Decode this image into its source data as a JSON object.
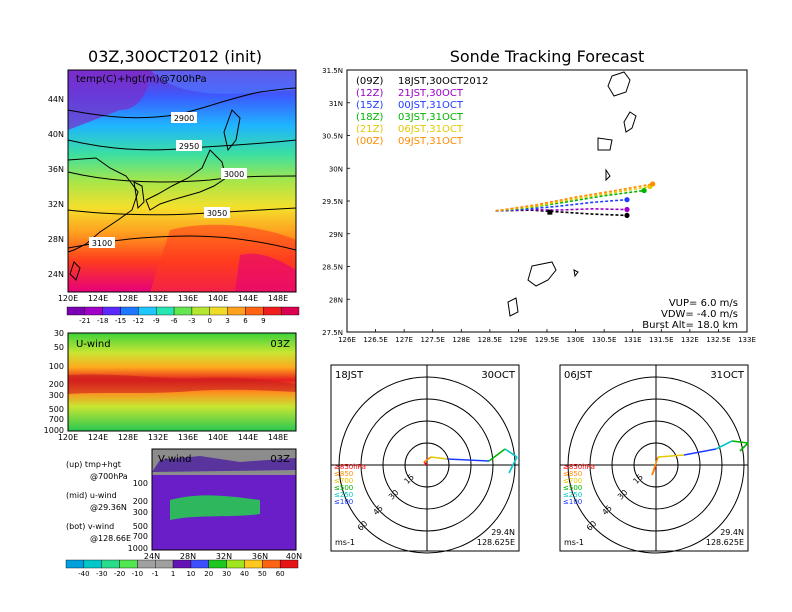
{
  "left": {
    "title": "03Z,30OCT2012 (init)",
    "map_label": "temp(C)+hgt(m)@700hPa",
    "lat_ticks": [
      "44N",
      "40N",
      "36N",
      "32N",
      "28N",
      "24N"
    ],
    "lon_ticks": [
      "120E",
      "124E",
      "128E",
      "132E",
      "136E",
      "140E",
      "144E",
      "148E"
    ],
    "contours": [
      "2900",
      "2950",
      "3000",
      "3050",
      "3100"
    ],
    "temp_colorbar": [
      "-21",
      "-18",
      "-15",
      "-12",
      "-9",
      "-6",
      "-3",
      "0",
      "3",
      "6",
      "9"
    ],
    "uwind": {
      "label": "U-wind",
      "time": "03Z",
      "p_ticks": [
        "30",
        "50",
        "100",
        "200",
        "300",
        "500",
        "700",
        "1000"
      ],
      "lon_ticks": [
        "120E",
        "124E",
        "128E",
        "132E",
        "136E",
        "140E",
        "144E",
        "148E"
      ]
    },
    "vwind": {
      "label": "V-wind",
      "time": "03Z",
      "p_ticks": [
        "100",
        "200",
        "300",
        "500",
        "700",
        "1000"
      ],
      "lat_ticks": [
        "24N",
        "28N",
        "32N",
        "36N",
        "40N"
      ]
    },
    "wind_colorbar": [
      "-40",
      "-30",
      "-20",
      "-10",
      "-1",
      "1",
      "10",
      "20",
      "30",
      "40",
      "50",
      "60"
    ],
    "notes": [
      {
        "a": "(up) tmp+hgt",
        "b": "@700hPa"
      },
      {
        "a": "(mid) u-wind",
        "b": "@29.36N"
      },
      {
        "a": "(bot) v-wind",
        "b": "@128.66E"
      }
    ]
  },
  "tracking": {
    "title": "Sonde Tracking Forecast",
    "lat_ticks": [
      "31.5N",
      "31N",
      "30.5N",
      "30N",
      "29.5N",
      "29N",
      "28.5N",
      "28N",
      "27.5N"
    ],
    "lon_ticks": [
      "126E",
      "126.5E",
      "127E",
      "127.5E",
      "128E",
      "128.5E",
      "129E",
      "129.5E",
      "130E",
      "130.5E",
      "131E",
      "131.5E",
      "132E",
      "132.5E",
      "133E"
    ],
    "legend": [
      {
        "run": "(09Z)",
        "valid": "18JST,30OCT2012",
        "color": "#000000"
      },
      {
        "run": "(12Z)",
        "valid": "21JST,30OCT",
        "color": "#9a00c8"
      },
      {
        "run": "(15Z)",
        "valid": "00JST,31OCT",
        "color": "#1e3cff"
      },
      {
        "run": "(18Z)",
        "valid": "03JST,31OCT",
        "color": "#00b400"
      },
      {
        "run": "(21Z)",
        "valid": "06JST,31OCT",
        "color": "#e6c800"
      },
      {
        "run": "(00Z)",
        "valid": "09JST,31OCT",
        "color": "#ff8c00"
      }
    ],
    "params": {
      "vup": "VUP= 6.0 m/s",
      "vdw": "VDW= -4.0 m/s",
      "burst": "Burst Alt= 18.0 km"
    }
  },
  "hodo_left": {
    "time": "18JST",
    "date": "30OCT",
    "unit": "ms-1",
    "lat": "29.4N",
    "lon": "128.625E",
    "rings": [
      "15",
      "30",
      "45",
      "60"
    ],
    "levels": [
      "≥850hPa",
      "≤850",
      "≤700",
      "≤500",
      "≤250",
      "≤100"
    ]
  },
  "hodo_right": {
    "time": "06JST",
    "date": "31OCT",
    "unit": "ms-1",
    "lat": "29.4N",
    "lon": "128.625E",
    "rings": [
      "15",
      "30",
      "45",
      "60"
    ],
    "levels": [
      "≥850hPa",
      "≤850",
      "≤700",
      "≤500",
      "≤250",
      "≤100"
    ]
  },
  "chart_data": [
    {
      "type": "line",
      "title": "Sonde Tracking Forecast",
      "xlabel": "",
      "ylabel": "",
      "xlim": [
        126,
        133
      ],
      "ylim": [
        27.5,
        31.5
      ],
      "series": [
        {
          "name": "(09Z) 18JST,30OCT2012",
          "x": [
            128.6,
            129.2,
            129.6,
            130.3,
            130.9
          ],
          "y": [
            29.35,
            29.36,
            29.34,
            29.3,
            29.28
          ]
        },
        {
          "name": "(12Z) 21JST,30OCT",
          "x": [
            128.6,
            129.2,
            129.6,
            130.3,
            130.9
          ],
          "y": [
            29.35,
            29.37,
            29.36,
            29.38,
            29.37
          ]
        },
        {
          "name": "(15Z) 00JST,31OCT",
          "x": [
            128.6,
            129.2,
            129.7,
            130.3,
            130.9
          ],
          "y": [
            29.35,
            29.38,
            29.42,
            29.48,
            29.52
          ]
        },
        {
          "name": "(18Z) 03JST,31OCT",
          "x": [
            128.6,
            129.2,
            129.8,
            130.5,
            131.2
          ],
          "y": [
            29.35,
            29.4,
            29.48,
            29.58,
            29.66
          ]
        },
        {
          "name": "(21Z) 06JST,31OCT",
          "x": [
            128.6,
            129.3,
            129.9,
            130.6,
            131.3
          ],
          "y": [
            29.35,
            29.42,
            29.52,
            29.62,
            29.72
          ]
        },
        {
          "name": "(00Z) 09JST,31OCT",
          "x": [
            128.6,
            129.3,
            130.0,
            130.7,
            131.35
          ],
          "y": [
            29.35,
            29.44,
            29.56,
            29.66,
            29.76
          ]
        }
      ]
    }
  ]
}
